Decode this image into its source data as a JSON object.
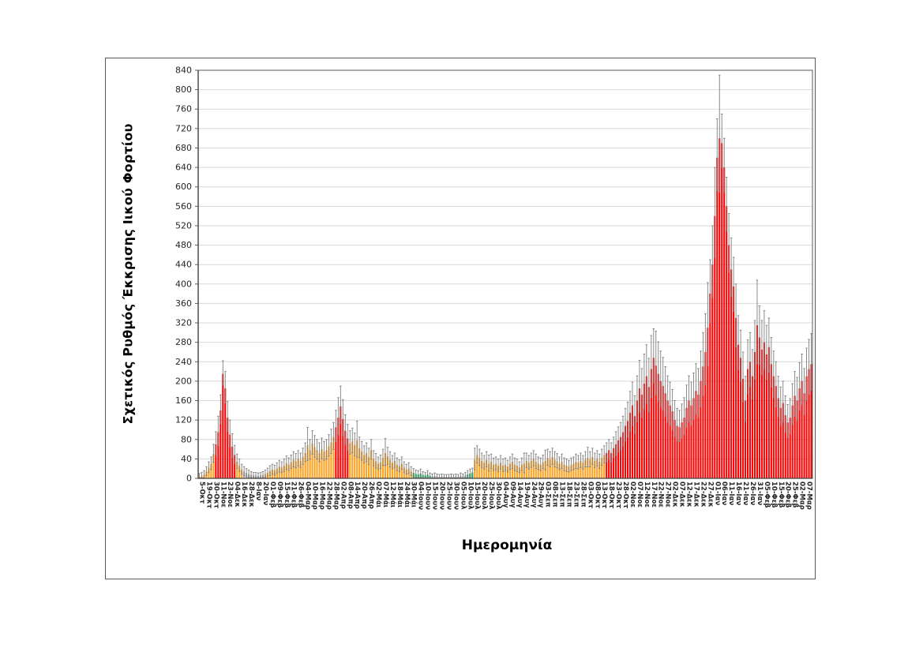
{
  "figure": {
    "kind": "excel-style column chart with error bars",
    "background": "#FFFFFF",
    "border_color": "#595959"
  },
  "chart_data": {
    "type": "bar",
    "title": "",
    "xlabel": "Ημερομηνία",
    "ylabel": "Σχετικός Ρυθμός Έκκρισης Ιικού Φορτίου",
    "ylim": [
      0,
      840
    ],
    "ytick_step": 40,
    "grid": true,
    "legend_position": "none",
    "gridline_color": "#D9D9D9",
    "plot_border_color": "#595959",
    "axis_label_color": "#262626",
    "error_bar_color": "#7F7F7F",
    "error_low_factor": 0.85,
    "bars_per_tick": 3,
    "color_key": [
      "red",
      "orange",
      "green",
      "gray"
    ],
    "color_map": {
      "red": "#FE0000",
      "orange": "#FCA120",
      "green": "#00B050",
      "gray": "#A6A6A6"
    },
    "x_tick_labels": [
      "5-Οκτ",
      "19-Οκτ",
      "30-Οκτ",
      "11-Νοε",
      "23-Νοε",
      "04-Δεκ",
      "16-Δεκ",
      "28-Δεκ",
      "8-Ιαν",
      "20-Ιαν",
      "01-Φεβ",
      "09-Φεβ",
      "15-Φεβ",
      "21-Φεβ",
      "26-Φεβ",
      "04-Μαρ",
      "10-Μαρ",
      "16-Μαρ",
      "22-Μαρ",
      "28-Μαρ",
      "02-Απρ",
      "08-Απρ",
      "14-Απρ",
      "20-Απρ",
      "26-Απρ",
      "02-Μάι",
      "07-Μάι",
      "12-Μάι",
      "18-Μάι",
      "24-Μάι",
      "30-Μάι",
      "04-Ιουν",
      "10-Ιουν",
      "15-Ιουν",
      "20-Ιουν",
      "25-Ιουν",
      "30-Ιουν",
      "05-Ιουλ",
      "10-Ιουλ",
      "15-Ιουλ",
      "20-Ιουλ",
      "25-Ιουλ",
      "30-Ιουλ",
      "04-Αυγ",
      "09-Αυγ",
      "14-Αυγ",
      "19-Αυγ",
      "24-Αυγ",
      "29-Αυγ",
      "03-Σεπ",
      "08-Σεπ",
      "13-Σεπ",
      "18-Σεπ",
      "23-Σεπ",
      "28-Σεπ",
      "03-Οκτ",
      "08-Οκτ",
      "13-Οκτ",
      "18-Οκτ",
      "23-Οκτ",
      "28-Οκτ",
      "02-Νοε",
      "07-Νοε",
      "12-Νοε",
      "17-Νοε",
      "22-Νοε",
      "27-Νοε",
      "02-Δεκ",
      "07-Δεκ",
      "12-Δεκ",
      "17-Δεκ",
      "22-Δεκ",
      "27-Δεκ",
      "01-Ιαν",
      "06-Ιαν",
      "11-Ιαν",
      "16-Ιαν",
      "21-Ιαν",
      "26-Ιαν",
      "31-Ιαν",
      "05-Φεβ",
      "10-Φεβ",
      "15-Φεβ",
      "20-Φεβ",
      "25-Φεβ",
      "02-Μαρ",
      "07-Μαρ"
    ],
    "bars": [
      [
        3,
        10,
        1
      ],
      [
        5,
        12,
        1
      ],
      [
        8,
        16,
        1
      ],
      [
        14,
        24,
        1
      ],
      [
        22,
        34,
        1
      ],
      [
        30,
        44,
        1
      ],
      [
        50,
        70,
        1
      ],
      [
        70,
        96,
        0
      ],
      [
        95,
        128,
        0
      ],
      [
        140,
        172,
        0
      ],
      [
        215,
        242,
        0
      ],
      [
        185,
        220,
        0
      ],
      [
        125,
        158,
        0
      ],
      [
        90,
        120,
        0
      ],
      [
        65,
        92,
        0
      ],
      [
        48,
        68,
        0
      ],
      [
        34,
        50,
        1
      ],
      [
        26,
        40,
        1
      ],
      [
        18,
        29,
        1
      ],
      [
        14,
        24,
        3
      ],
      [
        11,
        20,
        3
      ],
      [
        9,
        17,
        3
      ],
      [
        7,
        14,
        3
      ],
      [
        6,
        12,
        3
      ],
      [
        6,
        12,
        3
      ],
      [
        5,
        11,
        3
      ],
      [
        6,
        12,
        3
      ],
      [
        7,
        14,
        3
      ],
      [
        9,
        17,
        1
      ],
      [
        12,
        21,
        1
      ],
      [
        15,
        26,
        1
      ],
      [
        18,
        29,
        1
      ],
      [
        16,
        27,
        1
      ],
      [
        20,
        32,
        1
      ],
      [
        24,
        37,
        1
      ],
      [
        22,
        34,
        1
      ],
      [
        26,
        40,
        1
      ],
      [
        31,
        46,
        1
      ],
      [
        28,
        42,
        1
      ],
      [
        33,
        48,
        1
      ],
      [
        38,
        55,
        1
      ],
      [
        35,
        51,
        1
      ],
      [
        40,
        57,
        1
      ],
      [
        36,
        52,
        1
      ],
      [
        44,
        62,
        1
      ],
      [
        52,
        73,
        1
      ],
      [
        68,
        105,
        1
      ],
      [
        58,
        80,
        1
      ],
      [
        72,
        98,
        1
      ],
      [
        64,
        88,
        1
      ],
      [
        58,
        80,
        1
      ],
      [
        52,
        73,
        1
      ],
      [
        60,
        83,
        1
      ],
      [
        55,
        76,
        1
      ],
      [
        58,
        80,
        1
      ],
      [
        66,
        90,
        1
      ],
      [
        74,
        101,
        1
      ],
      [
        85,
        115,
        1
      ],
      [
        105,
        140,
        0
      ],
      [
        125,
        166,
        0
      ],
      [
        148,
        190,
        0
      ],
      [
        122,
        162,
        0
      ],
      [
        98,
        131,
        0
      ],
      [
        82,
        111,
        0
      ],
      [
        72,
        98,
        1
      ],
      [
        76,
        103,
        1
      ],
      [
        68,
        93,
        1
      ],
      [
        78,
        118,
        1
      ],
      [
        62,
        85,
        1
      ],
      [
        55,
        76,
        1
      ],
      [
        48,
        67,
        1
      ],
      [
        52,
        73,
        1
      ],
      [
        44,
        62,
        1
      ],
      [
        58,
        80,
        1
      ],
      [
        40,
        57,
        1
      ],
      [
        35,
        51,
        1
      ],
      [
        30,
        44,
        1
      ],
      [
        33,
        48,
        1
      ],
      [
        42,
        60,
        1
      ],
      [
        52,
        82,
        1
      ],
      [
        45,
        64,
        1
      ],
      [
        38,
        55,
        1
      ],
      [
        32,
        47,
        1
      ],
      [
        36,
        52,
        1
      ],
      [
        28,
        42,
        1
      ],
      [
        25,
        38,
        1
      ],
      [
        30,
        44,
        1
      ],
      [
        22,
        34,
        1
      ],
      [
        18,
        29,
        1
      ],
      [
        20,
        32,
        1
      ],
      [
        14,
        24,
        1
      ],
      [
        11,
        20,
        2
      ],
      [
        9,
        17,
        2
      ],
      [
        8,
        16,
        2
      ],
      [
        10,
        19,
        2
      ],
      [
        7,
        14,
        2
      ],
      [
        6,
        12,
        2
      ],
      [
        8,
        16,
        2
      ],
      [
        5,
        11,
        2
      ],
      [
        4,
        9,
        3
      ],
      [
        5,
        11,
        3
      ],
      [
        4,
        9,
        3
      ],
      [
        3,
        8,
        3
      ],
      [
        4,
        9,
        3
      ],
      [
        3,
        8,
        3
      ],
      [
        3,
        8,
        3
      ],
      [
        3,
        8,
        3
      ],
      [
        4,
        9,
        3
      ],
      [
        3,
        8,
        3
      ],
      [
        4,
        9,
        3
      ],
      [
        3,
        8,
        3
      ],
      [
        5,
        11,
        3
      ],
      [
        4,
        9,
        3
      ],
      [
        6,
        12,
        3
      ],
      [
        8,
        16,
        2
      ],
      [
        10,
        19,
        2
      ],
      [
        12,
        21,
        2
      ],
      [
        38,
        62,
        1
      ],
      [
        48,
        67,
        1
      ],
      [
        42,
        60,
        1
      ],
      [
        36,
        52,
        1
      ],
      [
        32,
        47,
        1
      ],
      [
        38,
        55,
        1
      ],
      [
        30,
        48,
        1
      ],
      [
        34,
        50,
        1
      ],
      [
        28,
        42,
        1
      ],
      [
        30,
        44,
        1
      ],
      [
        26,
        40,
        1
      ],
      [
        32,
        47,
        1
      ],
      [
        26,
        40,
        1
      ],
      [
        28,
        42,
        1
      ],
      [
        24,
        37,
        1
      ],
      [
        30,
        44,
        1
      ],
      [
        34,
        50,
        1
      ],
      [
        28,
        42,
        1
      ],
      [
        26,
        40,
        1
      ],
      [
        22,
        34,
        1
      ],
      [
        28,
        42,
        1
      ],
      [
        30,
        52,
        1
      ],
      [
        36,
        52,
        1
      ],
      [
        32,
        47,
        1
      ],
      [
        36,
        52,
        1
      ],
      [
        40,
        57,
        1
      ],
      [
        34,
        50,
        1
      ],
      [
        30,
        44,
        1
      ],
      [
        28,
        42,
        1
      ],
      [
        33,
        48,
        1
      ],
      [
        36,
        58,
        1
      ],
      [
        42,
        60,
        1
      ],
      [
        38,
        55,
        1
      ],
      [
        44,
        62,
        1
      ],
      [
        38,
        55,
        1
      ],
      [
        35,
        51,
        1
      ],
      [
        30,
        44,
        1
      ],
      [
        34,
        50,
        1
      ],
      [
        28,
        42,
        1
      ],
      [
        26,
        40,
        1
      ],
      [
        24,
        37,
        1
      ],
      [
        28,
        42,
        1
      ],
      [
        30,
        44,
        1
      ],
      [
        34,
        50,
        1
      ],
      [
        32,
        47,
        1
      ],
      [
        36,
        52,
        1
      ],
      [
        32,
        47,
        1
      ],
      [
        38,
        55,
        1
      ],
      [
        42,
        64,
        1
      ],
      [
        38,
        55,
        1
      ],
      [
        44,
        62,
        1
      ],
      [
        36,
        52,
        1
      ],
      [
        40,
        57,
        1
      ],
      [
        34,
        50,
        1
      ],
      [
        42,
        60,
        1
      ],
      [
        48,
        67,
        1
      ],
      [
        52,
        73,
        0
      ],
      [
        58,
        80,
        0
      ],
      [
        52,
        73,
        0
      ],
      [
        62,
        85,
        0
      ],
      [
        70,
        96,
        0
      ],
      [
        78,
        106,
        0
      ],
      [
        85,
        115,
        0
      ],
      [
        95,
        128,
        0
      ],
      [
        108,
        144,
        0
      ],
      [
        118,
        157,
        0
      ],
      [
        135,
        179,
        0
      ],
      [
        150,
        198,
        0
      ],
      [
        128,
        170,
        0
      ],
      [
        160,
        211,
        0
      ],
      [
        185,
        243,
        0
      ],
      [
        172,
        226,
        0
      ],
      [
        195,
        256,
        0
      ],
      [
        210,
        275,
        0
      ],
      [
        188,
        247,
        0
      ],
      [
        225,
        294,
        0
      ],
      [
        248,
        308,
        0
      ],
      [
        232,
        303,
        0
      ],
      [
        215,
        281,
        0
      ],
      [
        200,
        262,
        0
      ],
      [
        190,
        249,
        0
      ],
      [
        175,
        230,
        0
      ],
      [
        160,
        211,
        0
      ],
      [
        150,
        198,
        0
      ],
      [
        138,
        183,
        0
      ],
      [
        120,
        160,
        0
      ],
      [
        108,
        144,
        0
      ],
      [
        105,
        140,
        0
      ],
      [
        115,
        153,
        0
      ],
      [
        125,
        166,
        0
      ],
      [
        145,
        192,
        0
      ],
      [
        160,
        211,
        0
      ],
      [
        150,
        198,
        0
      ],
      [
        165,
        217,
        0
      ],
      [
        180,
        236,
        0
      ],
      [
        172,
        226,
        0
      ],
      [
        200,
        262,
        0
      ],
      [
        230,
        300,
        0
      ],
      [
        260,
        339,
        0
      ],
      [
        310,
        403,
        0
      ],
      [
        380,
        450,
        0
      ],
      [
        440,
        520,
        0
      ],
      [
        540,
        640,
        0
      ],
      [
        660,
        740,
        0
      ],
      [
        700,
        830,
        0
      ],
      [
        690,
        750,
        0
      ],
      [
        640,
        700,
        0
      ],
      [
        560,
        620,
        0
      ],
      [
        480,
        545,
        0
      ],
      [
        430,
        495,
        0
      ],
      [
        395,
        455,
        0
      ],
      [
        330,
        400,
        0
      ],
      [
        275,
        335,
        0
      ],
      [
        248,
        305,
        0
      ],
      [
        205,
        260,
        0
      ],
      [
        160,
        210,
        0
      ],
      [
        225,
        285,
        0
      ],
      [
        240,
        300,
        0
      ],
      [
        210,
        265,
        0
      ],
      [
        260,
        325,
        0
      ],
      [
        315,
        408,
        0
      ],
      [
        290,
        355,
        0
      ],
      [
        265,
        325,
        0
      ],
      [
        280,
        345,
        0
      ],
      [
        255,
        315,
        0
      ],
      [
        270,
        330,
        0
      ],
      [
        235,
        290,
        0
      ],
      [
        210,
        262,
        0
      ],
      [
        190,
        240,
        0
      ],
      [
        165,
        210,
        0
      ],
      [
        145,
        188,
        0
      ],
      [
        155,
        200,
        0
      ],
      [
        130,
        170,
        0
      ],
      [
        115,
        152,
        0
      ],
      [
        125,
        164,
        0
      ],
      [
        150,
        195,
        0
      ],
      [
        170,
        220,
        0
      ],
      [
        160,
        208,
        0
      ],
      [
        185,
        238,
        0
      ],
      [
        200,
        256,
        0
      ],
      [
        175,
        226,
        0
      ],
      [
        210,
        268,
        0
      ],
      [
        225,
        286,
        0
      ],
      [
        235,
        298,
        0
      ]
    ]
  }
}
